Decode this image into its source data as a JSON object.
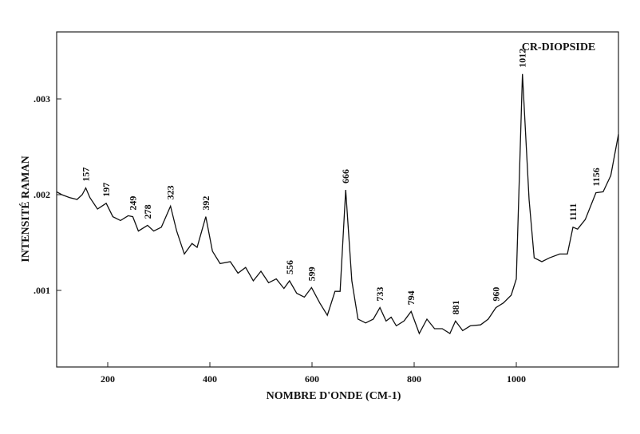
{
  "chart_data": {
    "type": "line",
    "title": "CR-DIOPSIDE",
    "x_label": "NOMBRE D'ONDE (CM-1)",
    "y_label": "INTENSITÉ RAMAN",
    "xlim": [
      100,
      1200
    ],
    "xticks": [
      200,
      400,
      600,
      800,
      1000
    ],
    "ylim": [
      0.0002,
      0.0037
    ],
    "yticks": [
      {
        "value": 0.001,
        "label": ".001"
      },
      {
        "value": 0.002,
        "label": ".002"
      },
      {
        "value": 0.003,
        "label": ".003"
      }
    ],
    "color": "#111111",
    "x": [
      100,
      110,
      125,
      140,
      150,
      157,
      165,
      180,
      197,
      210,
      225,
      240,
      249,
      260,
      278,
      290,
      305,
      323,
      335,
      350,
      365,
      375,
      392,
      405,
      420,
      440,
      455,
      470,
      485,
      500,
      515,
      530,
      545,
      556,
      570,
      585,
      599,
      615,
      630,
      645,
      655,
      666,
      678,
      690,
      705,
      720,
      733,
      745,
      755,
      765,
      780,
      794,
      810,
      825,
      840,
      855,
      870,
      881,
      895,
      910,
      930,
      945,
      960,
      975,
      990,
      1000,
      1012,
      1025,
      1035,
      1050,
      1065,
      1085,
      1100,
      1111,
      1120,
      1135,
      1156,
      1170,
      1185,
      1200
    ],
    "values": [
      0.00203,
      0.002,
      0.00197,
      0.00195,
      0.002,
      0.00207,
      0.00197,
      0.00185,
      0.00191,
      0.00177,
      0.00173,
      0.00178,
      0.00177,
      0.00162,
      0.00168,
      0.00162,
      0.00166,
      0.00188,
      0.00162,
      0.00138,
      0.00149,
      0.00145,
      0.00177,
      0.00141,
      0.00128,
      0.0013,
      0.00118,
      0.00124,
      0.0011,
      0.0012,
      0.00108,
      0.00112,
      0.00102,
      0.0011,
      0.00097,
      0.00093,
      0.00103,
      0.00087,
      0.00074,
      0.00099,
      0.00099,
      0.00205,
      0.0011,
      0.0007,
      0.00066,
      0.0007,
      0.00082,
      0.00068,
      0.00072,
      0.00063,
      0.00068,
      0.00078,
      0.00055,
      0.0007,
      0.0006,
      0.0006,
      0.00055,
      0.00068,
      0.00058,
      0.00063,
      0.00064,
      0.0007,
      0.00082,
      0.00087,
      0.00095,
      0.00112,
      0.00326,
      0.00195,
      0.00134,
      0.0013,
      0.00134,
      0.00138,
      0.00138,
      0.00166,
      0.00164,
      0.00174,
      0.00202,
      0.00203,
      0.0022,
      0.00263
    ],
    "peaks": [
      157,
      197,
      249,
      278,
      323,
      392,
      556,
      599,
      666,
      733,
      794,
      881,
      960,
      1012,
      1111,
      1156
    ]
  }
}
